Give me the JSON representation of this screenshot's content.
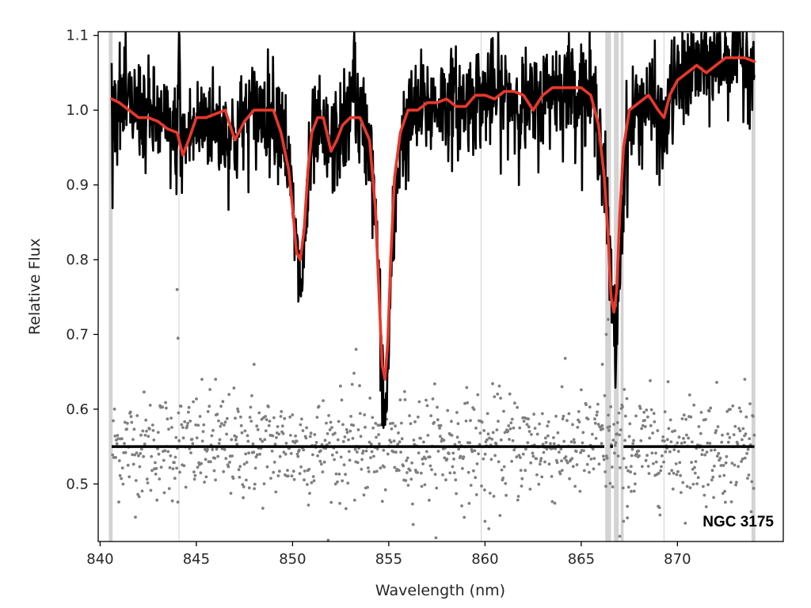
{
  "chart_data": {
    "type": "line",
    "xlabel": "Wavelength (nm)",
    "ylabel": "Relative Flux",
    "annotation": "NGC 3175",
    "xlim": [
      839.9,
      875.5
    ],
    "ylim": [
      0.423,
      1.105
    ],
    "xticks": [
      840,
      845,
      850,
      855,
      860,
      865,
      870
    ],
    "yticks": [
      0.5,
      0.6,
      0.7,
      0.8,
      0.9,
      1.0,
      1.1
    ],
    "grid": false,
    "legend": "none",
    "colors": {
      "spectrum": "#000000",
      "model": "#e8382b",
      "residuals": "#7f7f7f",
      "masked_region": "#d3d3d3",
      "reference_line": "#000000"
    },
    "masked_regions": [
      [
        840.45,
        840.65
      ],
      [
        866.25,
        866.55
      ],
      [
        866.7,
        866.95
      ],
      [
        867.05,
        867.2
      ],
      [
        873.85,
        874.05
      ]
    ],
    "line_markers": [
      844.1,
      859.8,
      869.3
    ],
    "reference_level": 0.55,
    "reference_gaps": [
      [
        866.2,
        866.5
      ],
      [
        866.65,
        867.2
      ]
    ],
    "noise_amplitude": 0.035,
    "residual_scatter": 0.036,
    "series": [
      {
        "role": "model",
        "x": [
          840.6,
          841.0,
          841.5,
          842.0,
          842.5,
          843.0,
          843.5,
          844.0,
          844.3,
          844.6,
          845.0,
          845.5,
          846.0,
          846.5,
          847.0,
          847.5,
          848.0,
          848.5,
          849.0,
          849.4,
          849.8,
          850.0,
          850.2,
          850.4,
          850.6,
          850.8,
          851.0,
          851.3,
          851.6,
          852.0,
          852.3,
          852.6,
          853.0,
          853.5,
          854.0,
          854.3,
          854.5,
          854.65,
          854.8,
          854.95,
          855.1,
          855.3,
          855.6,
          856.0,
          856.5,
          857.0,
          857.5,
          858.0,
          858.5,
          859.0,
          859.5,
          860.0,
          860.5,
          861.0,
          861.5,
          862.0,
          862.5,
          863.0,
          863.5,
          864.0,
          864.5,
          865.0,
          865.5,
          865.9,
          866.2,
          866.4,
          866.55,
          866.7,
          866.85,
          867.0,
          867.2,
          867.5,
          868.0,
          868.5,
          869.0,
          869.3,
          869.6,
          870.0,
          870.5,
          871.0,
          871.5,
          872.0,
          872.5,
          873.0,
          873.5,
          874.0
        ],
        "y": [
          1.015,
          1.01,
          1.0,
          0.99,
          0.99,
          0.985,
          0.975,
          0.97,
          0.94,
          0.96,
          0.99,
          0.99,
          0.995,
          1.0,
          0.96,
          0.985,
          1.0,
          1.0,
          1.0,
          0.97,
          0.92,
          0.87,
          0.81,
          0.8,
          0.84,
          0.92,
          0.97,
          0.99,
          0.99,
          0.945,
          0.96,
          0.98,
          0.99,
          0.99,
          0.96,
          0.87,
          0.75,
          0.66,
          0.64,
          0.69,
          0.8,
          0.91,
          0.97,
          1.0,
          1.0,
          1.01,
          1.01,
          1.015,
          1.005,
          1.005,
          1.02,
          1.02,
          1.015,
          1.025,
          1.025,
          1.02,
          1.0,
          1.02,
          1.03,
          1.03,
          1.03,
          1.03,
          1.02,
          0.98,
          0.91,
          0.83,
          0.75,
          0.73,
          0.76,
          0.86,
          0.95,
          1.0,
          1.01,
          1.02,
          1.0,
          0.99,
          1.02,
          1.04,
          1.05,
          1.06,
          1.05,
          1.06,
          1.07,
          1.07,
          1.07,
          1.065
        ]
      },
      {
        "role": "spectrum",
        "x": [
          840.6,
          842.0,
          843.2,
          844.0,
          844.1,
          844.2,
          844.4,
          845.5,
          847.0,
          847.5,
          848.5,
          849.5,
          850.0,
          850.3,
          850.5,
          850.7,
          851.1,
          852.0,
          853.0,
          853.2,
          853.3,
          853.4,
          854.0,
          854.4,
          854.6,
          854.75,
          854.85,
          854.95,
          855.2,
          855.6,
          856.5,
          858.0,
          859.0,
          860.0,
          861.0,
          862.5,
          863.5,
          864.5,
          865.5,
          866.0,
          866.3,
          866.6,
          866.8,
          867.0,
          867.3,
          867.8,
          868.5,
          869.0,
          869.3,
          869.6,
          870.5,
          871.5,
          872.5,
          873.0,
          873.5,
          874.0
        ],
        "y": [
          1.01,
          1.0,
          0.98,
          0.96,
          1.1,
          0.95,
          0.96,
          0.99,
          0.96,
          0.99,
          1.0,
          0.99,
          0.87,
          0.78,
          0.77,
          0.86,
          0.97,
          0.95,
          0.99,
          1.1,
          0.98,
          0.99,
          0.96,
          0.82,
          0.68,
          0.6,
          0.58,
          0.66,
          0.82,
          0.96,
          1.0,
          1.01,
          1.01,
          1.02,
          1.02,
          1.0,
          1.03,
          1.03,
          1.02,
          0.97,
          0.88,
          0.74,
          0.68,
          0.8,
          0.95,
          1.0,
          1.01,
          0.99,
          0.96,
          1.02,
          1.05,
          1.06,
          1.07,
          1.08,
          1.07,
          1.065
        ]
      },
      {
        "role": "residuals",
        "x": [
          844.0,
          844.05,
          846.0,
          848.0,
          853.3,
          864.0,
          866.1,
          866.3,
          866.4,
          867.0,
          867.2,
          867.4,
          867.6,
          867.8,
          860.0,
          860.2,
          873.5
        ],
        "y": [
          0.76,
          0.695,
          0.64,
          0.66,
          0.68,
          0.63,
          0.66,
          0.7,
          0.72,
          0.43,
          0.45,
          0.47,
          0.49,
          0.5,
          0.45,
          0.44,
          0.64
        ]
      }
    ]
  }
}
